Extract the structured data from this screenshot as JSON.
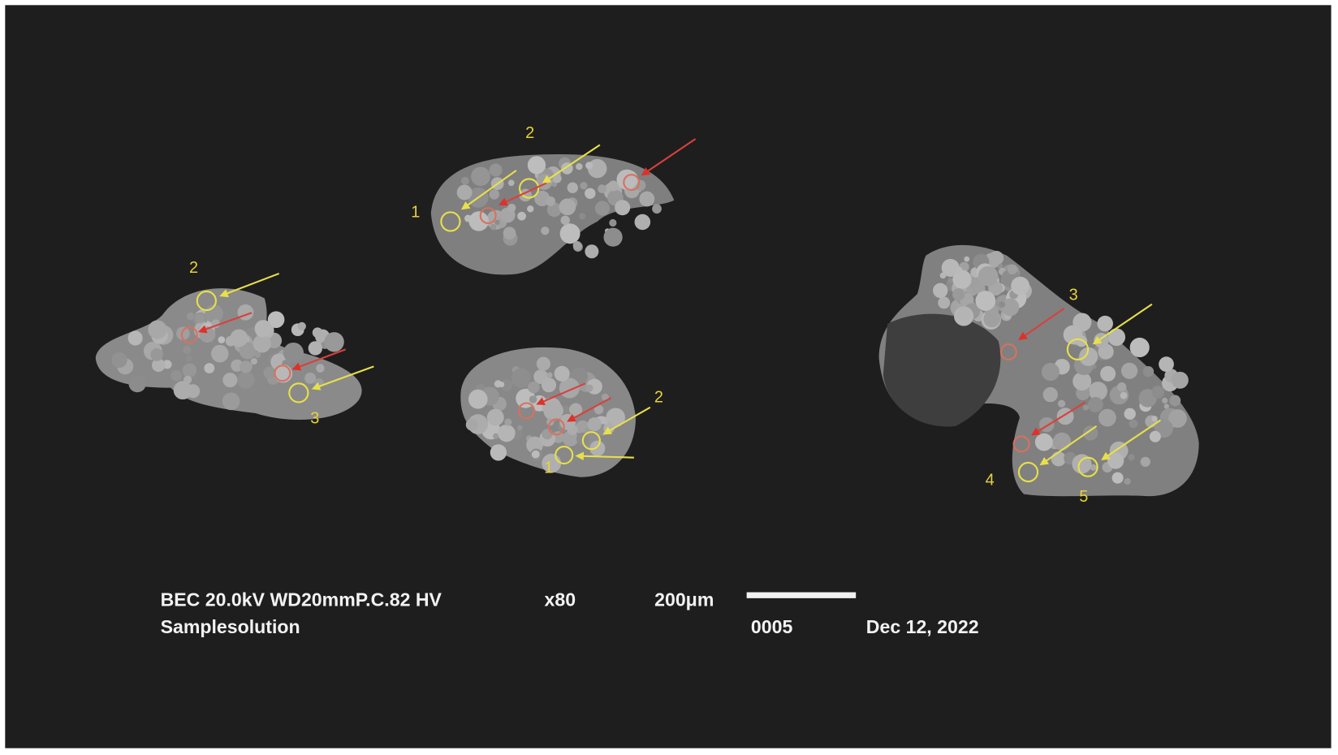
{
  "info_bar": {
    "line1": [
      "BEC 20.0kV WD20mmP.C.82  HV",
      "x80",
      "200μm"
    ],
    "line2": [
      "Samplesolution",
      "0005",
      "Dec 12, 2022"
    ]
  },
  "labels": [
    "2",
    "1",
    "2",
    "3",
    "2",
    "1",
    "3",
    "4",
    "5"
  ]
}
